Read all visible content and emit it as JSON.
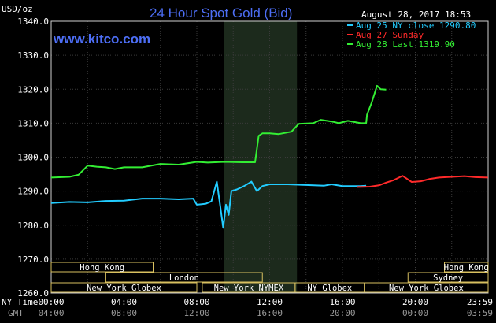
{
  "chart_data": {
    "type": "line",
    "title": "24 Hour Spot Gold (Bid)",
    "ylabel": "USD/oz",
    "site": "www.kitco.com",
    "timestamp": "August 28, 2017 18:53",
    "ylim": [
      1260,
      1340
    ],
    "y_ticks": [
      "1340.0",
      "1330.0",
      "1320.0",
      "1310.0",
      "1300.0",
      "1290.0",
      "1280.0",
      "1270.0",
      "1260.0"
    ],
    "x_ticks_ny": [
      "00:00",
      "04:00",
      "08:00",
      "12:00",
      "16:00",
      "20:00",
      "23:59"
    ],
    "x_ticks_gmt": [
      "04:00",
      "08:00",
      "12:00",
      "16:00",
      "20:00",
      "00:00",
      "03:59"
    ],
    "x_axis_label_ny": "NY Time",
    "x_axis_label_gmt": "GMT",
    "grid": true,
    "legend_position": "top-right",
    "legend": [
      {
        "text": "Aug 25 NY close 1290.80",
        "color": "#22ccff"
      },
      {
        "text": "Aug 27 Sunday",
        "color": "#ff2a2a"
      },
      {
        "text": "Aug 28 Last 1319.90",
        "color": "#33ee33"
      }
    ],
    "shaded_region_hours": [
      9.5,
      13.5
    ],
    "sessions": [
      {
        "label": "Hong Kong",
        "start": 0,
        "end": 5.6,
        "row": 0
      },
      {
        "label": "Hong Kong",
        "start": 21.6,
        "end": 24,
        "row": 0
      },
      {
        "label": "London",
        "start": 3,
        "end": 11.6,
        "row": 1
      },
      {
        "label": "Sydney",
        "start": 19.6,
        "end": 24,
        "row": 1
      },
      {
        "label": "New York Globex",
        "start": 0,
        "end": 8,
        "row": 2
      },
      {
        "label": "New York NYMEX",
        "start": 8.3,
        "end": 13.4,
        "row": 2
      },
      {
        "label": "NY Globex",
        "start": 13.4,
        "end": 17.2,
        "row": 2
      },
      {
        "label": "New York Globex",
        "start": 17.2,
        "end": 24,
        "row": 2
      }
    ],
    "series": [
      {
        "name": "Aug 25 NY close 1290.80",
        "color": "#22ccff",
        "x": [
          0,
          1,
          2,
          3,
          4,
          5,
          6,
          7,
          7.8,
          8.0,
          8.5,
          8.8,
          9.1,
          9.3,
          9.45,
          9.6,
          9.75,
          9.9,
          10.2,
          10.6,
          11.0,
          11.3,
          11.6,
          12.0,
          12.5,
          13,
          14,
          15,
          15.4,
          16,
          17,
          17.3
        ],
        "values": [
          1286.5,
          1286.8,
          1286.7,
          1287.1,
          1287.2,
          1287.8,
          1287.8,
          1287.6,
          1287.8,
          1286.0,
          1286.3,
          1287.0,
          1292.8,
          1285.0,
          1279.2,
          1286.0,
          1283.0,
          1290.0,
          1290.5,
          1291.5,
          1292.8,
          1290.0,
          1291.5,
          1292.0,
          1292.0,
          1292.0,
          1291.8,
          1291.6,
          1292.0,
          1291.5,
          1291.5,
          1291.6
        ]
      },
      {
        "name": "Aug 27 Sunday",
        "color": "#ff2a2a",
        "x": [
          16.8,
          17.5,
          18.0,
          18.4,
          18.8,
          19.3,
          19.8,
          20.3,
          20.8,
          21.3,
          22,
          22.7,
          23.3,
          23.99
        ],
        "values": [
          1291.2,
          1291.3,
          1291.7,
          1292.5,
          1293.2,
          1294.5,
          1292.7,
          1292.9,
          1293.6,
          1294.0,
          1294.2,
          1294.4,
          1294.1,
          1294.0
        ]
      },
      {
        "name": "Aug 28 Last 1319.90",
        "color": "#33ee33",
        "x": [
          0,
          1,
          1.5,
          2,
          2.5,
          3,
          3.5,
          4,
          5,
          6,
          7,
          8,
          8.6,
          9.5,
          10.5,
          11.2,
          11.4,
          11.6,
          12.0,
          12.5,
          13.2,
          13.6,
          14.4,
          14.8,
          15.4,
          15.8,
          16.3,
          17.0,
          17.3,
          17.35,
          17.6,
          17.9,
          18.1,
          18.4
        ],
        "values": [
          1294.0,
          1294.2,
          1294.8,
          1297.5,
          1297.2,
          1297.0,
          1296.5,
          1297.0,
          1297.0,
          1298.0,
          1297.8,
          1298.6,
          1298.4,
          1298.6,
          1298.5,
          1298.5,
          1306.3,
          1307.0,
          1307.0,
          1306.8,
          1307.5,
          1309.8,
          1310.0,
          1311.0,
          1310.5,
          1310.0,
          1310.7,
          1310.0,
          1310.0,
          1312.5,
          1316.0,
          1321.0,
          1320.0,
          1319.9
        ]
      }
    ]
  }
}
